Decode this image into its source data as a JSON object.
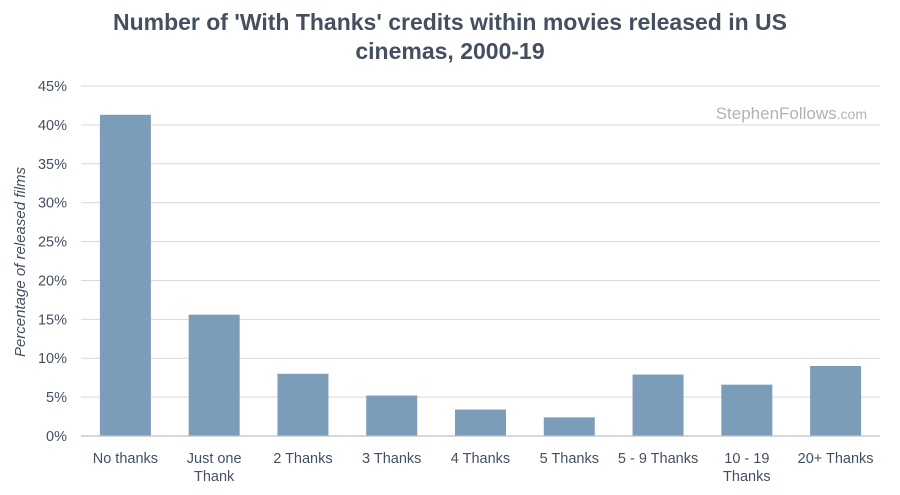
{
  "chart_data": {
    "type": "bar",
    "title_lines": [
      "Number of 'With Thanks' credits within movies released in US",
      "cinemas, 2000-19"
    ],
    "ylabel": "Percentage of released films",
    "xlabel": "",
    "categories": [
      [
        "No thanks"
      ],
      [
        "Just one",
        "Thank"
      ],
      [
        "2 Thanks"
      ],
      [
        "3 Thanks"
      ],
      [
        "4 Thanks"
      ],
      [
        "5 Thanks"
      ],
      [
        "5 - 9 Thanks"
      ],
      [
        "10 - 19",
        "Thanks"
      ],
      [
        "20+ Thanks"
      ]
    ],
    "values": [
      41.3,
      15.6,
      8.0,
      5.2,
      3.4,
      2.4,
      7.9,
      6.6,
      9.0
    ],
    "ylim": [
      0,
      45
    ],
    "yticks": [
      "0%",
      "5%",
      "10%",
      "15%",
      "20%",
      "25%",
      "30%",
      "35%",
      "40%",
      "45%"
    ],
    "ytick_values": [
      0,
      5,
      10,
      15,
      20,
      25,
      30,
      35,
      40,
      45
    ],
    "grid": true,
    "bar_color": "#7b9dba",
    "grid_color": "#d9d9d9",
    "axis_color": "#bfbfbf"
  },
  "watermark": {
    "main": "StephenFollows",
    "suffix": ".com"
  }
}
